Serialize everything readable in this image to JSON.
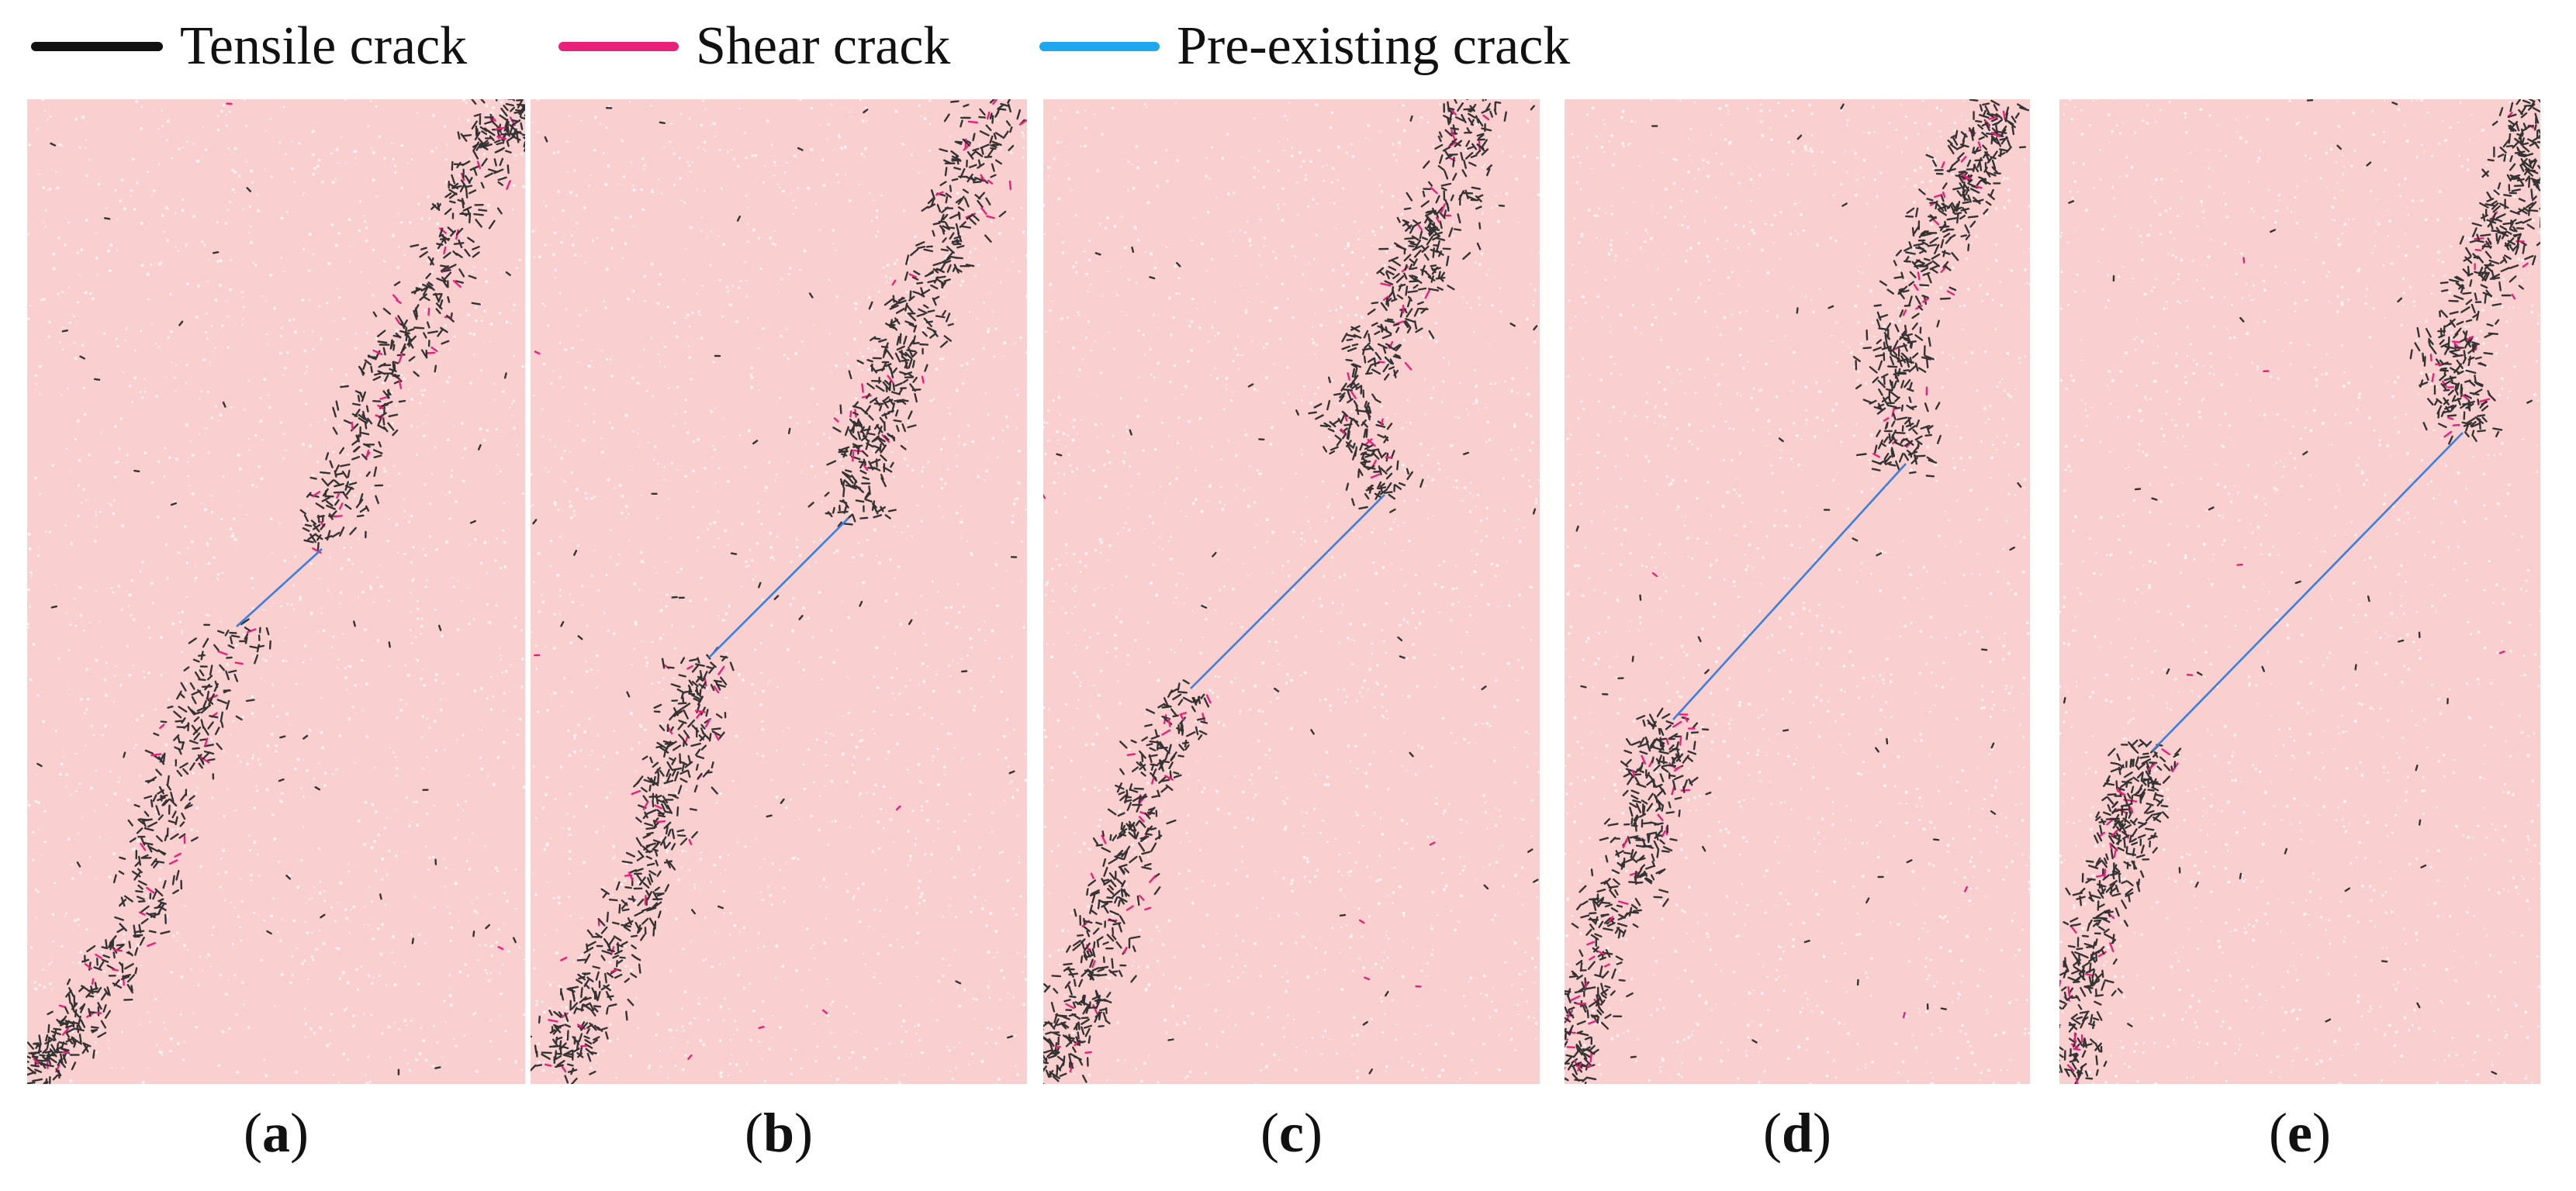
{
  "legend": [
    {
      "label": "Tensile crack",
      "color": "#111111"
    },
    {
      "label": "Shear crack",
      "color": "#e8207a"
    },
    {
      "label": "Pre-existing crack",
      "color": "#1ea7ee"
    }
  ],
  "colors": {
    "specimen": "#f9cfcf",
    "particle_gap": "#ffffff",
    "tensile": "#333333",
    "shear": "#e8207a",
    "preexisting": "#3a7fe0"
  },
  "panels": [
    {
      "letter": "a"
    },
    {
      "letter": "b"
    },
    {
      "letter": "c"
    },
    {
      "letter": "d"
    },
    {
      "letter": "e"
    }
  ]
}
